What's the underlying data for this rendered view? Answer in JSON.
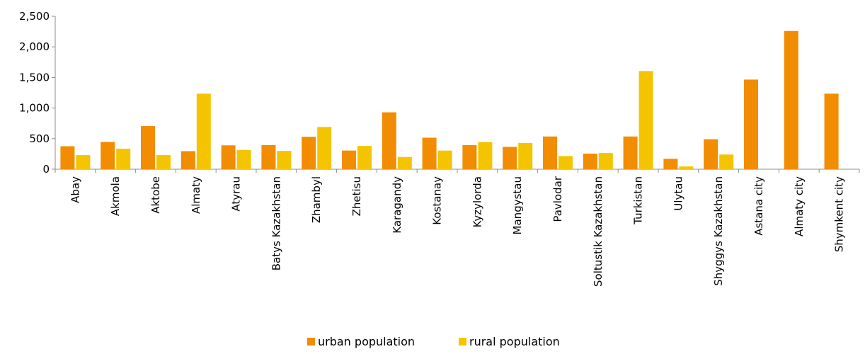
{
  "chart_data": {
    "type": "bar",
    "categories": [
      "Abay",
      "Akmola",
      "Aktobe",
      "Almaty",
      "Atyrau",
      "Batys Kazakhstan",
      "Zhambyl",
      "Zhetisu",
      "Karagandy",
      "Kostanay",
      "Kyzylorda",
      "Mangystau",
      "Pavlodar",
      "Soltustik Kazakhstan",
      "Turkistan",
      "Ulytau",
      "Shyggys Kazakhstan",
      "Astana city",
      "Almaty city",
      "Shymkent city"
    ],
    "series": [
      {
        "name": "urban population",
        "color": "#F28C00",
        "values": [
          375,
          445,
          705,
          295,
          390,
          395,
          530,
          305,
          930,
          515,
          395,
          365,
          535,
          255,
          535,
          170,
          490,
          1465,
          2260,
          1235
        ]
      },
      {
        "name": "rural population",
        "color": "#F5C400",
        "values": [
          230,
          335,
          230,
          1235,
          315,
          300,
          690,
          380,
          200,
          305,
          445,
          430,
          215,
          265,
          1605,
          45,
          240,
          0,
          0,
          0
        ]
      }
    ],
    "ylim": [
      0,
      2500
    ],
    "yticks": [
      0,
      500,
      1000,
      1500,
      2000,
      2500
    ],
    "ytick_labels": [
      "0",
      "500",
      "1,000",
      "1,500",
      "2,000",
      "2,500"
    ],
    "grid": false,
    "legend_position": "bottom-center"
  }
}
